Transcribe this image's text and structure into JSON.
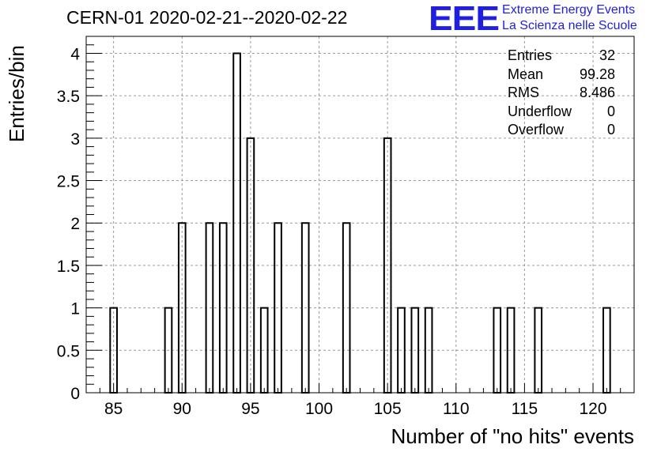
{
  "title": "CERN-01 2020-02-21--2020-02-22",
  "logo": {
    "mark": "EEE",
    "line1": "Extreme Energy Events",
    "line2": "La Scienza nelle Scuole",
    "color": "#1f1fe0"
  },
  "stats": [
    {
      "label": "Entries",
      "value": "32"
    },
    {
      "label": "Mean",
      "value": "99.28"
    },
    {
      "label": "RMS",
      "value": "8.486"
    },
    {
      "label": "Underflow",
      "value": "0"
    },
    {
      "label": "Overflow",
      "value": "0"
    }
  ],
  "chart_data": {
    "type": "bar",
    "title": "CERN-01 2020-02-21--2020-02-22",
    "xlabel": "Number of \"no hits\" events",
    "ylabel": "Entries/bin",
    "xlim": [
      83,
      123
    ],
    "ylim": [
      0,
      4.2
    ],
    "grid": true,
    "bin_width": 0.5,
    "x_ticks": [
      85,
      90,
      95,
      100,
      105,
      110,
      115,
      120
    ],
    "y_ticks": [
      0,
      0.5,
      1,
      1.5,
      2,
      2.5,
      3,
      3.5,
      4
    ],
    "x_tick_labels": [
      "85",
      "90",
      "95",
      "100",
      "105",
      "110",
      "115",
      "120"
    ],
    "y_tick_labels": [
      "0",
      "0.5",
      "1",
      "1.5",
      "2",
      "2.5",
      "3",
      "3.5",
      "4"
    ],
    "bins": [
      {
        "x": 85,
        "count": 1
      },
      {
        "x": 89,
        "count": 1
      },
      {
        "x": 90,
        "count": 2
      },
      {
        "x": 92,
        "count": 2
      },
      {
        "x": 93,
        "count": 2
      },
      {
        "x": 94,
        "count": 4
      },
      {
        "x": 95,
        "count": 3
      },
      {
        "x": 96,
        "count": 1
      },
      {
        "x": 97,
        "count": 2
      },
      {
        "x": 99,
        "count": 2
      },
      {
        "x": 102,
        "count": 2
      },
      {
        "x": 105,
        "count": 3
      },
      {
        "x": 106,
        "count": 1
      },
      {
        "x": 107,
        "count": 1
      },
      {
        "x": 108,
        "count": 1
      },
      {
        "x": 113,
        "count": 1
      },
      {
        "x": 114,
        "count": 1
      },
      {
        "x": 116,
        "count": 1
      },
      {
        "x": 121,
        "count": 1
      }
    ]
  }
}
